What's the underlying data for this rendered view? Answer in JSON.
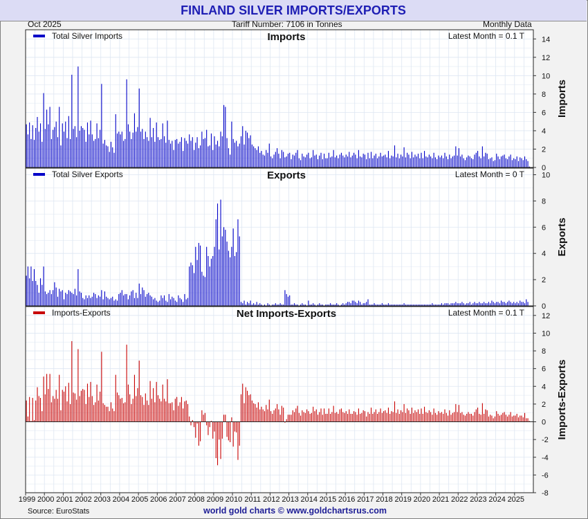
{
  "title": "FINLAND SILVER IMPORTS/EXPORTS",
  "date": "Oct  2025",
  "tariff": "Tariff Number: 7106 in Tonnes",
  "frequency": "Monthly Data",
  "source": "Source: EuroStats",
  "credit": "world gold charts © www.goldchartsrus.com",
  "colors": {
    "imports": "#0000c8",
    "exports": "#0000c8",
    "net": "#c80000",
    "grid": "#dde6f2"
  },
  "chart_data": [
    {
      "type": "bar",
      "title": "Imports",
      "legend": "Total Silver Imports",
      "latest": "Latest Month = 0.1 T",
      "ylabel": "Imports",
      "ylim": [
        0,
        15
      ],
      "yticks": [
        0,
        2,
        4,
        6,
        8,
        10,
        12,
        14
      ],
      "x_start": "1999-01",
      "x_end": "2025-10",
      "xticks": [
        "1999",
        "2000",
        "2001",
        "2002",
        "2003",
        "2004",
        "2005",
        "2006",
        "2007",
        "2008",
        "2009",
        "2010",
        "2011",
        "2012",
        "2013",
        "2014",
        "2015",
        "2016",
        "2017",
        "2018",
        "2019",
        "2020",
        "2021",
        "2022",
        "2023",
        "2024",
        "2025"
      ],
      "values_by_year": {
        "1999": [
          4.7,
          3.6,
          4.9,
          3.1,
          4.6,
          3.0,
          4.3,
          5.5,
          3.9,
          4.8,
          2.8,
          8.1
        ],
        "2000": [
          4.2,
          6.3,
          4.7,
          6.6,
          3.1,
          4.1,
          4.4,
          5.0,
          3.3,
          6.6,
          2.4,
          4.8
        ],
        "2001": [
          3.9,
          5.0,
          3.2,
          5.6,
          3.1,
          10.1,
          4.2,
          4.5,
          3.3,
          11.0,
          4.0,
          4.5
        ],
        "2002": [
          4.3,
          4.1,
          2.8,
          4.9,
          3.6,
          5.1,
          3.6,
          2.9,
          3.1,
          4.8,
          3.2,
          4.1
        ],
        "2003": [
          9.1,
          2.6,
          3.0,
          2.4,
          2.3,
          1.7,
          2.8,
          2.2,
          1.6,
          5.8,
          3.7,
          3.9
        ],
        "2004": [
          3.6,
          3.9,
          2.9,
          3.1,
          9.6,
          4.7,
          3.9,
          3.1,
          3.8,
          5.9,
          3.9,
          4.4
        ],
        "2005": [
          8.6,
          3.9,
          4.2,
          3.1,
          3.9,
          3.3,
          2.9,
          5.4,
          3.3,
          4.3,
          2.8,
          4.9
        ],
        "2006": [
          3.3,
          3.0,
          3.1,
          4.8,
          3.4,
          2.7,
          5.1,
          3.0,
          2.6,
          2.9,
          1.9,
          3.0
        ],
        "2007": [
          3.1,
          2.6,
          2.8,
          3.3,
          1.8,
          3.2,
          2.9,
          2.6,
          3.6,
          2.9,
          3.3,
          1.9
        ],
        "2008": [
          2.7,
          3.3,
          2.1,
          2.4,
          3.9,
          3.1,
          3.2,
          4.1,
          2.3,
          2.4,
          3.7,
          1.9
        ],
        "2009": [
          3.4,
          2.5,
          2.9,
          2.3,
          3.9,
          3.4,
          6.8,
          6.6,
          3.2,
          2.1,
          1.4,
          5.0
        ],
        "2010": [
          3.1,
          2.7,
          2.9,
          2.3,
          2.6,
          3.4,
          4.5,
          2.5,
          4.0,
          3.8,
          3.2,
          3.5
        ],
        "2011": [
          2.5,
          2.3,
          2.1,
          1.9,
          2.3,
          1.6,
          1.8,
          1.4,
          1.3,
          1.9,
          1.6,
          2.6
        ],
        "2012": [
          1.2,
          1.0,
          1.4,
          1.7,
          2.1,
          1.5,
          1.0,
          1.9,
          1.7,
          1.1,
          1.2,
          1.5
        ],
        "2013": [
          1.6,
          0.9,
          1.4,
          1.3,
          1.6,
          1.9,
          1.0,
          0.8,
          1.5,
          1.2,
          1.1,
          1.4
        ],
        "2014": [
          1.6,
          1.0,
          1.1,
          1.9,
          1.3,
          1.4,
          0.9,
          1.3,
          1.6,
          0.9,
          1.5,
          1.0
        ],
        "2015": [
          1.0,
          1.6,
          1.1,
          1.2,
          1.9,
          1.1,
          1.3,
          1.0,
          1.4,
          1.6,
          1.3,
          1.1
        ],
        "2016": [
          1.4,
          1.2,
          1.7,
          1.1,
          1.3,
          1.6,
          1.4,
          1.0,
          1.9,
          1.2,
          1.1,
          1.5
        ],
        "2017": [
          1.4,
          0.9,
          1.6,
          1.0,
          1.7,
          1.0,
          1.3,
          1.5,
          1.0,
          1.2,
          1.6,
          1.2
        ],
        "2018": [
          1.3,
          1.4,
          1.1,
          1.8,
          1.0,
          1.3,
          1.2,
          2.4,
          1.1,
          1.5,
          1.0,
          1.4
        ],
        "2019": [
          1.2,
          2.2,
          1.1,
          1.6,
          1.4,
          1.0,
          1.7,
          1.1,
          1.4,
          1.2,
          1.5,
          1.0
        ],
        "2020": [
          1.6,
          1.0,
          1.8,
          1.2,
          1.1,
          1.4,
          1.2,
          1.0,
          1.6,
          1.1,
          0.9,
          1.3
        ],
        "2021": [
          1.1,
          1.3,
          1.0,
          1.6,
          1.2,
          0.9,
          1.4,
          1.0,
          1.2,
          1.3,
          2.3,
          1.3
        ],
        "2022": [
          2.1,
          1.2,
          1.4,
          1.0,
          0.8,
          1.1,
          1.3,
          1.2,
          1.0,
          0.9,
          1.4,
          1.6
        ],
        "2023": [
          1.8,
          1.2,
          1.0,
          2.3,
          1.2,
          1.6,
          1.5,
          0.9,
          1.0,
          1.1,
          0.7,
          0.8
        ],
        "2024": [
          1.5,
          1.2,
          0.9,
          1.2,
          1.3,
          1.4,
          1.0,
          0.9,
          1.2,
          1.4,
          0.8,
          1.0
        ],
        "2025": [
          0.9,
          1.2,
          0.7,
          1.1,
          1.0,
          0.8,
          1.2,
          0.9,
          0.7,
          0.1
        ]
      }
    },
    {
      "type": "bar",
      "title": "Exports",
      "legend": "Total Silver Exports",
      "latest": "Latest Month = 0 T",
      "ylabel": "Exports",
      "ylim": [
        0,
        10.5
      ],
      "yticks": [
        0,
        2,
        4,
        6,
        8,
        10
      ],
      "x_start": "1999-01",
      "x_end": "2025-10",
      "values_by_year": {
        "1999": [
          2.3,
          3.0,
          2.1,
          3.0,
          1.9,
          2.8,
          1.9,
          1.6,
          1.0,
          2.1,
          1.6,
          3.0
        ],
        "2000": [
          1.1,
          0.9,
          1.0,
          1.2,
          0.9,
          1.2,
          1.8,
          1.4,
          0.7,
          1.3,
          1.1,
          1.2
        ],
        "2001": [
          0.5,
          1.0,
          0.9,
          1.2,
          1.1,
          1.0,
          0.9,
          1.3,
          0.8,
          2.8,
          1.1,
          1.0
        ],
        "2002": [
          0.6,
          0.5,
          0.8,
          0.6,
          0.8,
          0.6,
          0.7,
          1.0,
          0.9,
          0.6,
          0.8,
          0.7
        ],
        "2003": [
          1.2,
          0.5,
          1.1,
          0.7,
          0.6,
          0.5,
          0.6,
          0.7,
          0.4,
          0.5,
          0.4,
          0.9
        ],
        "2004": [
          1.0,
          1.2,
          0.8,
          0.9,
          0.9,
          0.5,
          0.8,
          1.1,
          1.2,
          0.6,
          1.0,
          0.6
        ],
        "2005": [
          1.7,
          0.9,
          1.4,
          1.2,
          0.7,
          0.9,
          1.0,
          0.8,
          0.7,
          0.5,
          0.6,
          0.4
        ],
        "2006": [
          0.3,
          0.4,
          0.8,
          0.6,
          0.8,
          0.4,
          0.3,
          0.9,
          0.5,
          0.7,
          0.6,
          0.4
        ],
        "2007": [
          0.3,
          0.8,
          0.6,
          0.5,
          0.3,
          0.9,
          0.5,
          0.6,
          3.0,
          3.3,
          3.1,
          2.5
        ],
        "2008": [
          4.5,
          3.5,
          4.8,
          4.6,
          2.6,
          2.3,
          2.2,
          4.5,
          3.8,
          3.0,
          3.6,
          3.8
        ],
        "2009": [
          4.5,
          6.6,
          7.8,
          4.3,
          8.1,
          5.3,
          6.0,
          5.8,
          4.9,
          4.2,
          3.7,
          4.5
        ],
        "2010": [
          5.9,
          3.8,
          4.1,
          6.6,
          5.3,
          0.3,
          0.2,
          0.4,
          0.1,
          0.3,
          0.2,
          0.4
        ],
        "2011": [
          0.1,
          0.2,
          0.1,
          0.3,
          0.1,
          0.2,
          0.1,
          0.0,
          0.1,
          0.0,
          0.2,
          0.1
        ],
        "2012": [
          0.0,
          0.1,
          0.1,
          0.2,
          0.1,
          0.1,
          0.2,
          0.1,
          0.1,
          1.2,
          0.9,
          0.7
        ],
        "2013": [
          0.8,
          0.1,
          0.1,
          0.2,
          0.1,
          0.1,
          0.0,
          0.1,
          0.2,
          0.1,
          0.1,
          0.0
        ],
        "2014": [
          0.4,
          0.1,
          0.1,
          0.2,
          0.1,
          0.0,
          0.1,
          0.2,
          0.1,
          0.1,
          0.0,
          0.1
        ],
        "2015": [
          0.1,
          0.1,
          0.2,
          0.1,
          0.1,
          0.1,
          0.2,
          0.1,
          0.0,
          0.1,
          0.2,
          0.1
        ],
        "2016": [
          0.2,
          0.3,
          0.3,
          0.2,
          0.4,
          0.4,
          0.3,
          0.2,
          0.4,
          0.3,
          0.1,
          0.2
        ],
        "2017": [
          0.2,
          0.3,
          0.5,
          0.1,
          0.1,
          0.1,
          0.2,
          0.1,
          0.1,
          0.1,
          0.1,
          0.2
        ],
        "2018": [
          0.1,
          0.1,
          0.1,
          0.2,
          0.1,
          0.1,
          0.1,
          0.1,
          0.1,
          0.1,
          0.1,
          0.1
        ],
        "2019": [
          0.1,
          0.2,
          0.1,
          0.1,
          0.1,
          0.1,
          0.1,
          0.1,
          0.1,
          0.1,
          0.1,
          0.1
        ],
        "2020": [
          0.1,
          0.1,
          0.1,
          0.1,
          0.1,
          0.1,
          0.1,
          0.2,
          0.1,
          0.1,
          0.1,
          0.1
        ],
        "2021": [
          0.1,
          0.2,
          0.1,
          0.2,
          0.2,
          0.2,
          0.1,
          0.2,
          0.2,
          0.2,
          0.3,
          0.2
        ],
        "2022": [
          0.2,
          0.2,
          0.3,
          0.2,
          0.1,
          0.2,
          0.2,
          0.3,
          0.1,
          0.2,
          0.3,
          0.2
        ],
        "2023": [
          0.2,
          0.3,
          0.2,
          0.2,
          0.3,
          0.2,
          0.2,
          0.3,
          0.2,
          0.4,
          0.3,
          0.2
        ],
        "2024": [
          0.3,
          0.3,
          0.2,
          0.4,
          0.3,
          0.3,
          0.2,
          0.3,
          0.4,
          0.3,
          0.2,
          0.3
        ],
        "2025": [
          0.2,
          0.3,
          0.2,
          0.4,
          0.3,
          0.3,
          0.2,
          0.5,
          0.3,
          0.0
        ]
      }
    },
    {
      "type": "bar",
      "title": "Net Imports-Exports",
      "legend": "Imports-Exports",
      "latest": "Latest Month = 0.1 T",
      "ylabel": "Imports-Exports",
      "ylim": [
        -8,
        13
      ],
      "yticks": [
        -8,
        -6,
        -4,
        -2,
        0,
        2,
        4,
        6,
        8,
        10,
        12
      ],
      "x_start": "1999-01",
      "x_end": "2025-10",
      "derived_from": "imports minus exports for each month",
      "values_by_year": {}
    }
  ]
}
